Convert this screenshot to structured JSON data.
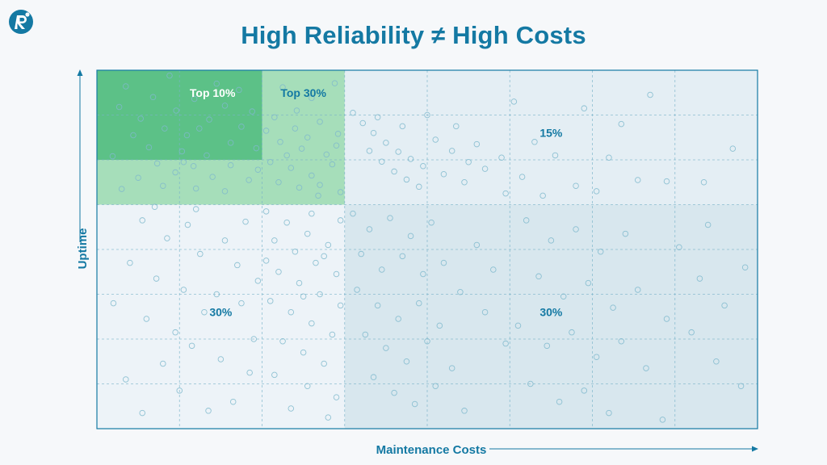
{
  "page": {
    "title": "High Reliability ≠  High Costs",
    "logo": {
      "icon": "reliability-r-logo-icon",
      "color": "#1479a3"
    }
  },
  "chart_data": {
    "type": "scatter",
    "title": "High Reliability ≠  High Costs",
    "xlabel": "Maintenance Costs",
    "ylabel": "Uptime",
    "xlim": [
      0,
      8
    ],
    "ylim": [
      0,
      8
    ],
    "grid": true,
    "axis_ticks": false,
    "colors": {
      "accent": "#1479a3",
      "top10": "#5cc187",
      "top30": "#a6deba",
      "low_cost_low_uptime": "#edf3f8",
      "high_cost_high_uptime": "#e4eef4",
      "high_cost_low_uptime": "#d8e7ee",
      "points": "#7fb8cc",
      "grid": "#79b3c9"
    },
    "regions": [
      {
        "name": "top10",
        "label": "Top 10%",
        "x": [
          0,
          2
        ],
        "y": [
          6,
          8
        ],
        "color": "#5cc187",
        "label_at": [
          1.4,
          7.5
        ],
        "label_color": "#ffffff"
      },
      {
        "name": "top30",
        "label": "Top 30%",
        "x": [
          0,
          3
        ],
        "y": [
          5,
          8
        ],
        "color": "#a6deba",
        "label_at": [
          2.5,
          7.5
        ],
        "label_color": "#1479a3"
      },
      {
        "name": "high-cost-high-uptime",
        "label": "15%",
        "x": [
          3,
          8
        ],
        "y": [
          5,
          8
        ],
        "color": "#e4eef4",
        "label_at": [
          5.5,
          6.6
        ],
        "label_color": "#1479a3"
      },
      {
        "name": "low-cost-low-uptime",
        "label": "30%",
        "x": [
          0,
          3
        ],
        "y": [
          0,
          5
        ],
        "color": "#edf3f8",
        "label_at": [
          1.5,
          2.6
        ],
        "label_color": "#1479a3"
      },
      {
        "name": "high-cost-low-uptime",
        "label": "30%",
        "x": [
          3,
          8
        ],
        "y": [
          0,
          5
        ],
        "color": "#d8e7ee",
        "label_at": [
          5.5,
          2.6
        ],
        "label_color": "#1479a3"
      }
    ],
    "points": [
      [
        0.35,
        7.64
      ],
      [
        0.68,
        7.4
      ],
      [
        0.27,
        7.18
      ],
      [
        0.53,
        6.92
      ],
      [
        0.82,
        6.7
      ],
      [
        0.44,
        6.55
      ],
      [
        0.96,
        7.1
      ],
      [
        1.18,
        7.36
      ],
      [
        1.36,
        6.9
      ],
      [
        1.09,
        6.55
      ],
      [
        1.55,
        7.21
      ],
      [
        1.75,
        6.74
      ],
      [
        1.88,
        7.08
      ],
      [
        0.63,
        6.28
      ],
      [
        1.03,
        6.19
      ],
      [
        1.33,
        6.1
      ],
      [
        1.62,
        6.38
      ],
      [
        1.93,
        6.26
      ],
      [
        0.19,
        6.08
      ],
      [
        1.45,
        7.7
      ],
      [
        0.88,
        7.88
      ],
      [
        1.72,
        7.56
      ],
      [
        1.24,
        6.7
      ],
      [
        0.73,
        5.92
      ],
      [
        0.95,
        5.72
      ],
      [
        1.17,
        5.86
      ],
      [
        1.4,
        5.62
      ],
      [
        1.62,
        5.88
      ],
      [
        1.84,
        5.55
      ],
      [
        0.5,
        5.6
      ],
      [
        0.3,
        5.35
      ],
      [
        0.8,
        5.42
      ],
      [
        1.2,
        5.36
      ],
      [
        1.55,
        5.3
      ],
      [
        1.95,
        5.78
      ],
      [
        1.05,
        5.95
      ],
      [
        2.25,
        7.62
      ],
      [
        2.6,
        7.38
      ],
      [
        2.88,
        7.71
      ],
      [
        2.15,
        6.95
      ],
      [
        2.4,
        6.7
      ],
      [
        2.7,
        6.85
      ],
      [
        2.92,
        6.58
      ],
      [
        2.22,
        6.4
      ],
      [
        2.48,
        6.25
      ],
      [
        2.78,
        6.12
      ],
      [
        2.1,
        5.95
      ],
      [
        2.35,
        5.82
      ],
      [
        2.6,
        5.65
      ],
      [
        2.85,
        5.9
      ],
      [
        2.2,
        5.5
      ],
      [
        2.45,
        5.38
      ],
      [
        2.7,
        5.44
      ],
      [
        2.95,
        5.28
      ],
      [
        2.3,
        6.1
      ],
      [
        2.55,
        6.5
      ],
      [
        2.05,
        6.65
      ],
      [
        2.68,
        5.2
      ],
      [
        2.9,
        6.32
      ],
      [
        2.42,
        7.1
      ],
      [
        3.1,
        7.05
      ],
      [
        3.22,
        6.82
      ],
      [
        3.35,
        6.6
      ],
      [
        3.5,
        6.38
      ],
      [
        3.65,
        6.18
      ],
      [
        3.8,
        6.02
      ],
      [
        3.95,
        5.86
      ],
      [
        3.3,
        6.2
      ],
      [
        3.45,
        5.96
      ],
      [
        3.6,
        5.74
      ],
      [
        3.75,
        5.56
      ],
      [
        3.9,
        5.4
      ],
      [
        4.1,
        6.45
      ],
      [
        4.3,
        6.2
      ],
      [
        4.5,
        5.95
      ],
      [
        4.2,
        5.68
      ],
      [
        4.45,
        5.5
      ],
      [
        4.7,
        5.8
      ],
      [
        4.9,
        6.05
      ],
      [
        4.6,
        6.35
      ],
      [
        3.4,
        6.95
      ],
      [
        3.7,
        6.75
      ],
      [
        4.0,
        7.0
      ],
      [
        4.35,
        6.75
      ],
      [
        5.3,
        6.4
      ],
      [
        5.55,
        6.1
      ],
      [
        5.15,
        5.62
      ],
      [
        5.8,
        5.42
      ],
      [
        6.2,
        6.05
      ],
      [
        6.55,
        5.55
      ],
      [
        6.9,
        5.52
      ],
      [
        6.35,
        6.8
      ],
      [
        6.7,
        7.45
      ],
      [
        5.05,
        7.3
      ],
      [
        5.9,
        7.15
      ],
      [
        7.35,
        5.5
      ],
      [
        7.7,
        6.25
      ],
      [
        6.05,
        5.3
      ],
      [
        5.4,
        5.2
      ],
      [
        4.95,
        5.25
      ],
      [
        0.55,
        4.65
      ],
      [
        0.85,
        4.25
      ],
      [
        1.1,
        4.55
      ],
      [
        0.4,
        3.7
      ],
      [
        0.72,
        3.35
      ],
      [
        1.25,
        3.9
      ],
      [
        1.05,
        3.1
      ],
      [
        0.2,
        2.8
      ],
      [
        0.6,
        2.45
      ],
      [
        0.95,
        2.15
      ],
      [
        1.3,
        2.6
      ],
      [
        1.55,
        4.2
      ],
      [
        1.8,
        4.62
      ],
      [
        1.7,
        3.65
      ],
      [
        1.95,
        3.3
      ],
      [
        1.45,
        3.0
      ],
      [
        1.75,
        2.8
      ],
      [
        1.15,
        1.85
      ],
      [
        0.8,
        1.45
      ],
      [
        1.5,
        1.55
      ],
      [
        1.9,
        2.0
      ],
      [
        0.35,
        1.1
      ],
      [
        1.0,
        0.85
      ],
      [
        1.65,
        0.6
      ],
      [
        1.85,
        1.25
      ],
      [
        0.55,
        0.35
      ],
      [
        1.35,
        0.4
      ],
      [
        1.2,
        4.9
      ],
      [
        0.7,
        4.95
      ],
      [
        2.05,
        4.85
      ],
      [
        2.3,
        4.6
      ],
      [
        2.55,
        4.35
      ],
      [
        2.8,
        4.1
      ],
      [
        2.15,
        4.2
      ],
      [
        2.4,
        3.95
      ],
      [
        2.65,
        3.7
      ],
      [
        2.9,
        3.45
      ],
      [
        2.2,
        3.5
      ],
      [
        2.45,
        3.25
      ],
      [
        2.7,
        3.0
      ],
      [
        2.95,
        2.75
      ],
      [
        2.1,
        2.85
      ],
      [
        2.35,
        2.6
      ],
      [
        2.6,
        2.35
      ],
      [
        2.85,
        2.1
      ],
      [
        2.25,
        1.95
      ],
      [
        2.5,
        1.7
      ],
      [
        2.75,
        1.45
      ],
      [
        2.15,
        1.2
      ],
      [
        2.55,
        0.95
      ],
      [
        2.9,
        0.7
      ],
      [
        2.35,
        0.45
      ],
      [
        2.8,
        0.25
      ],
      [
        2.6,
        4.8
      ],
      [
        2.95,
        4.65
      ],
      [
        2.05,
        3.75
      ],
      [
        2.5,
        2.95
      ],
      [
        2.75,
        3.85
      ],
      [
        3.1,
        4.8
      ],
      [
        3.3,
        4.45
      ],
      [
        3.55,
        4.7
      ],
      [
        3.8,
        4.3
      ],
      [
        4.05,
        4.6
      ],
      [
        3.2,
        3.9
      ],
      [
        3.45,
        3.55
      ],
      [
        3.7,
        3.85
      ],
      [
        3.95,
        3.45
      ],
      [
        4.2,
        3.7
      ],
      [
        3.15,
        3.1
      ],
      [
        3.4,
        2.75
      ],
      [
        3.65,
        2.45
      ],
      [
        3.9,
        2.8
      ],
      [
        4.15,
        2.3
      ],
      [
        4.4,
        3.05
      ],
      [
        3.25,
        2.1
      ],
      [
        3.5,
        1.8
      ],
      [
        3.75,
        1.5
      ],
      [
        4.0,
        1.95
      ],
      [
        4.3,
        1.35
      ],
      [
        3.35,
        1.15
      ],
      [
        3.6,
        0.8
      ],
      [
        3.85,
        0.55
      ],
      [
        4.1,
        0.95
      ],
      [
        4.45,
        0.4
      ],
      [
        4.6,
        4.1
      ],
      [
        4.8,
        3.55
      ],
      [
        4.7,
        2.6
      ],
      [
        4.95,
        1.9
      ],
      [
        5.2,
        4.65
      ],
      [
        5.5,
        4.2
      ],
      [
        5.8,
        4.45
      ],
      [
        6.1,
        3.95
      ],
      [
        6.4,
        4.35
      ],
      [
        5.35,
        3.4
      ],
      [
        5.65,
        2.95
      ],
      [
        5.95,
        3.25
      ],
      [
        6.25,
        2.7
      ],
      [
        6.55,
        3.1
      ],
      [
        5.1,
        2.3
      ],
      [
        5.45,
        1.85
      ],
      [
        5.75,
        2.15
      ],
      [
        6.05,
        1.6
      ],
      [
        6.35,
        1.95
      ],
      [
        6.65,
        1.35
      ],
      [
        5.25,
        1.0
      ],
      [
        5.6,
        0.6
      ],
      [
        5.9,
        0.85
      ],
      [
        6.2,
        0.35
      ],
      [
        6.85,
        0.2
      ],
      [
        7.05,
        4.05
      ],
      [
        7.3,
        3.35
      ],
      [
        7.6,
        2.75
      ],
      [
        7.85,
        3.6
      ],
      [
        7.2,
        2.15
      ],
      [
        7.5,
        1.5
      ],
      [
        7.8,
        0.95
      ],
      [
        6.9,
        2.45
      ],
      [
        7.4,
        4.55
      ]
    ]
  }
}
